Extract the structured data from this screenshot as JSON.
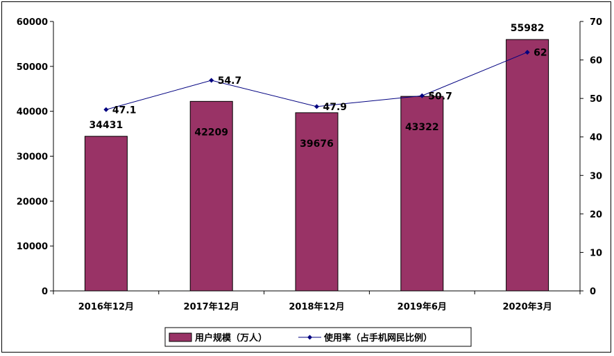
{
  "chart_data": {
    "type": "bar",
    "categories": [
      "2016年12月",
      "2017年12月",
      "2018年12月",
      "2019年6月",
      "2020年3月"
    ],
    "series": [
      {
        "name": "用户规模（万人）",
        "type": "bar",
        "axis": "left",
        "color": "#993366",
        "values": [
          34431,
          42209,
          39676,
          43322,
          55982
        ]
      },
      {
        "name": "使用率（占手机网民比例）",
        "type": "line",
        "axis": "right",
        "color": "#000080",
        "values": [
          47.1,
          54.7,
          47.9,
          50.7,
          62
        ]
      }
    ],
    "y_left": {
      "ylim": [
        0,
        60000
      ],
      "ticks": [
        "0",
        "10000",
        "20000",
        "30000",
        "40000",
        "50000",
        "60000"
      ]
    },
    "y_right": {
      "ylim": [
        0,
        70
      ],
      "ticks": [
        "0",
        "10",
        "20",
        "30",
        "40",
        "50",
        "60",
        "70"
      ]
    },
    "bar_labels": [
      "34431",
      "42209",
      "39676",
      "43322",
      "55982"
    ],
    "line_labels": [
      "47.1",
      "54.7",
      "47.9",
      "50.7",
      "62"
    ],
    "grid": false,
    "legend_position": "bottom"
  }
}
